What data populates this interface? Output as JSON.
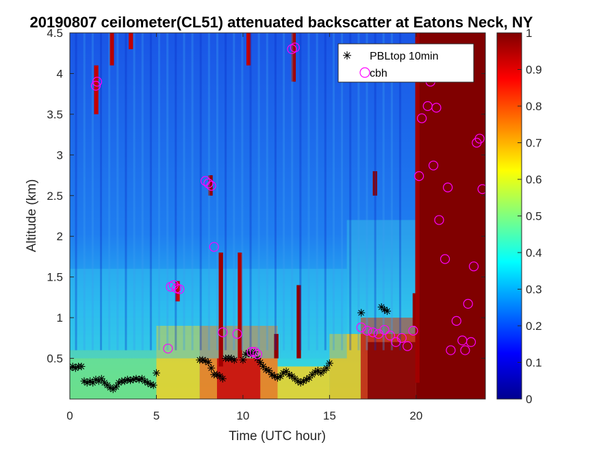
{
  "chart_data": {
    "type": "heatmap",
    "title": "20190807 ceilometer(CL51) attenuated backscatter at Eatons Neck, NY",
    "xlabel": "Time (UTC hour)",
    "ylabel": "Altitude (km)",
    "xlim": [
      0,
      24
    ],
    "ylim": [
      0,
      4.5
    ],
    "xticks": [
      "0",
      "5",
      "10",
      "15",
      "20"
    ],
    "yticks": [
      "0.5",
      "1",
      "1.5",
      "2",
      "2.5",
      "3",
      "3.5",
      "4",
      "4.5"
    ],
    "colorbar": {
      "colormap": "jet",
      "range": [
        0,
        1
      ],
      "ticks": [
        "0",
        "0.1",
        "0.2",
        "0.3",
        "0.4",
        "0.5",
        "0.6",
        "0.7",
        "0.8",
        "0.9",
        "1"
      ]
    },
    "legend": {
      "placement": "top-right",
      "entries": [
        {
          "label": "PBLtop 10min",
          "marker": "asterisk",
          "color": "#000000"
        },
        {
          "label": "cbh",
          "marker": "circle",
          "color": "#ff00ff"
        }
      ]
    },
    "series": [
      {
        "name": "PBLtop 10min",
        "x": [
          0.0,
          0.17,
          0.33,
          0.5,
          0.67,
          0.83,
          1.0,
          1.17,
          1.33,
          1.5,
          1.67,
          1.83,
          2.0,
          2.17,
          2.33,
          2.5,
          2.67,
          2.83,
          3.0,
          3.17,
          3.33,
          3.5,
          3.67,
          3.83,
          4.0,
          4.17,
          4.33,
          4.5,
          4.67,
          4.83,
          5.0,
          7.5,
          7.67,
          7.83,
          8.0,
          8.17,
          8.33,
          8.5,
          8.67,
          8.83,
          9.0,
          9.17,
          9.33,
          9.5,
          10.0,
          10.17,
          10.33,
          10.5,
          10.67,
          10.83,
          11.0,
          11.17,
          11.33,
          11.5,
          11.67,
          11.83,
          12.0,
          12.17,
          12.33,
          12.5,
          12.67,
          12.83,
          13.0,
          13.17,
          13.33,
          13.5,
          13.67,
          13.83,
          14.0,
          14.17,
          14.33,
          14.5,
          14.67,
          14.83,
          15.0,
          16.83,
          18.0,
          18.17,
          18.33
        ],
        "y": [
          0.38,
          0.4,
          0.38,
          0.4,
          0.4,
          0.22,
          0.2,
          0.22,
          0.2,
          0.24,
          0.22,
          0.25,
          0.2,
          0.17,
          0.14,
          0.12,
          0.15,
          0.2,
          0.22,
          0.22,
          0.24,
          0.23,
          0.24,
          0.25,
          0.24,
          0.25,
          0.22,
          0.2,
          0.18,
          0.17,
          0.32,
          0.48,
          0.48,
          0.47,
          0.45,
          0.38,
          0.3,
          0.3,
          0.28,
          0.25,
          0.5,
          0.5,
          0.5,
          0.48,
          0.48,
          0.55,
          0.57,
          0.55,
          0.58,
          0.5,
          0.45,
          0.4,
          0.36,
          0.35,
          0.3,
          0.28,
          0.26,
          0.28,
          0.32,
          0.34,
          0.3,
          0.28,
          0.25,
          0.22,
          0.2,
          0.22,
          0.24,
          0.26,
          0.3,
          0.33,
          0.35,
          0.32,
          0.35,
          0.38,
          0.44,
          1.06,
          1.13,
          1.1,
          1.08
        ]
      },
      {
        "name": "cbh",
        "x": [
          1.5,
          1.58,
          5.67,
          5.83,
          6.0,
          6.17,
          6.33,
          7.83,
          8.0,
          8.17,
          8.33,
          8.83,
          9.67,
          10.5,
          10.67,
          10.83,
          12.83,
          13.0,
          16.83,
          17.17,
          17.5,
          17.83,
          18.17,
          18.5,
          18.83,
          19.17,
          19.5,
          19.83,
          20.17,
          20.33,
          20.67,
          20.83,
          21.0,
          21.17,
          21.33,
          21.67,
          21.83,
          22.0,
          22.33,
          22.67,
          22.83,
          23.0,
          23.17,
          23.33,
          23.5,
          23.67,
          23.83
        ],
        "y": [
          3.85,
          3.9,
          0.62,
          1.38,
          1.4,
          1.36,
          1.35,
          2.68,
          2.65,
          2.62,
          1.87,
          0.82,
          0.8,
          0.58,
          0.58,
          0.55,
          4.3,
          4.32,
          0.88,
          0.84,
          0.82,
          0.8,
          0.85,
          0.78,
          0.7,
          0.75,
          0.65,
          0.84,
          2.74,
          3.45,
          3.6,
          3.9,
          2.87,
          3.58,
          2.2,
          1.72,
          2.6,
          0.6,
          0.96,
          0.72,
          0.6,
          1.17,
          0.7,
          1.63,
          3.15,
          3.2,
          2.58
        ]
      }
    ]
  }
}
